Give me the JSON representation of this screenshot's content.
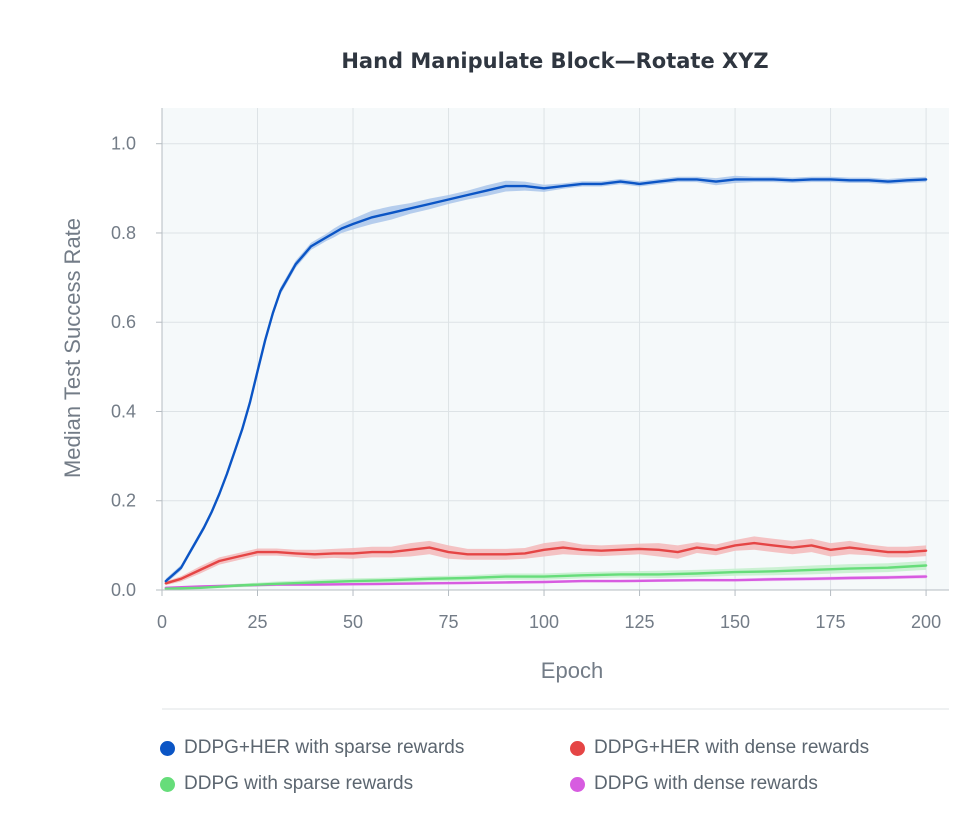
{
  "chart_data": {
    "type": "line",
    "title": "Hand Manipulate Block—Rotate XYZ",
    "xlabel": "Epoch",
    "ylabel": "Median Test Success Rate",
    "xlim": [
      0,
      206
    ],
    "ylim": [
      0,
      1.08
    ],
    "x_ticks": [
      "0",
      "25",
      "50",
      "75",
      "100",
      "125",
      "150",
      "175",
      "200"
    ],
    "y_ticks": [
      "0.0",
      "0.2",
      "0.4",
      "0.6",
      "0.8",
      "1.0"
    ],
    "grid": true,
    "legend_position": "bottom",
    "series": [
      {
        "name": "DDPG+HER with sparse rewards",
        "color": "#0b55c5",
        "band_color": "#a9c6ea",
        "x": [
          1,
          3,
          5,
          7,
          9,
          11,
          13,
          15,
          17,
          19,
          21,
          23,
          25,
          27,
          29,
          31,
          33,
          35,
          37,
          39,
          41,
          43,
          45,
          47,
          50,
          55,
          60,
          65,
          70,
          75,
          80,
          85,
          90,
          95,
          100,
          105,
          110,
          115,
          120,
          125,
          130,
          135,
          140,
          145,
          150,
          155,
          160,
          165,
          170,
          175,
          180,
          185,
          190,
          195,
          200
        ],
        "y": [
          0.02,
          0.035,
          0.05,
          0.08,
          0.11,
          0.14,
          0.175,
          0.215,
          0.26,
          0.31,
          0.36,
          0.42,
          0.49,
          0.56,
          0.62,
          0.67,
          0.7,
          0.73,
          0.75,
          0.77,
          0.78,
          0.79,
          0.8,
          0.81,
          0.82,
          0.835,
          0.845,
          0.855,
          0.865,
          0.875,
          0.885,
          0.895,
          0.905,
          0.905,
          0.9,
          0.905,
          0.91,
          0.91,
          0.915,
          0.91,
          0.915,
          0.92,
          0.92,
          0.915,
          0.92,
          0.92,
          0.92,
          0.918,
          0.92,
          0.92,
          0.918,
          0.918,
          0.915,
          0.918,
          0.92
        ],
        "band": [
          0.005,
          0.006,
          0.006,
          0.006,
          0.006,
          0.006,
          0.006,
          0.006,
          0.006,
          0.006,
          0.006,
          0.006,
          0.008,
          0.008,
          0.008,
          0.008,
          0.008,
          0.008,
          0.008,
          0.008,
          0.008,
          0.008,
          0.01,
          0.01,
          0.012,
          0.015,
          0.015,
          0.012,
          0.012,
          0.01,
          0.01,
          0.012,
          0.012,
          0.01,
          0.008,
          0.006,
          0.006,
          0.006,
          0.006,
          0.006,
          0.006,
          0.006,
          0.006,
          0.008,
          0.008,
          0.006,
          0.006,
          0.006,
          0.006,
          0.006,
          0.006,
          0.006,
          0.006,
          0.006,
          0.006
        ]
      },
      {
        "name": "DDPG+HER with dense rewards",
        "color": "#e54545",
        "band_color": "#f3b9b9",
        "x": [
          1,
          5,
          10,
          15,
          20,
          25,
          30,
          35,
          40,
          45,
          50,
          55,
          60,
          65,
          70,
          75,
          80,
          85,
          90,
          95,
          100,
          105,
          110,
          115,
          120,
          125,
          130,
          135,
          140,
          145,
          150,
          155,
          160,
          165,
          170,
          175,
          180,
          185,
          190,
          195,
          200
        ],
        "y": [
          0.015,
          0.025,
          0.045,
          0.065,
          0.075,
          0.085,
          0.085,
          0.082,
          0.08,
          0.082,
          0.082,
          0.085,
          0.085,
          0.09,
          0.095,
          0.085,
          0.08,
          0.08,
          0.08,
          0.082,
          0.09,
          0.095,
          0.09,
          0.088,
          0.09,
          0.092,
          0.09,
          0.085,
          0.095,
          0.09,
          0.1,
          0.105,
          0.1,
          0.095,
          0.1,
          0.09,
          0.095,
          0.09,
          0.085,
          0.085,
          0.088
        ],
        "band": [
          0.004,
          0.006,
          0.008,
          0.008,
          0.008,
          0.008,
          0.008,
          0.008,
          0.01,
          0.01,
          0.012,
          0.012,
          0.012,
          0.015,
          0.015,
          0.015,
          0.012,
          0.012,
          0.012,
          0.012,
          0.015,
          0.015,
          0.012,
          0.012,
          0.012,
          0.012,
          0.015,
          0.015,
          0.012,
          0.012,
          0.012,
          0.015,
          0.015,
          0.015,
          0.015,
          0.015,
          0.015,
          0.012,
          0.012,
          0.012,
          0.012
        ]
      },
      {
        "name": "DDPG with sparse rewards",
        "color": "#66dd7a",
        "band_color": "#c3f0cb",
        "x": [
          1,
          10,
          20,
          30,
          40,
          50,
          60,
          70,
          80,
          90,
          100,
          110,
          120,
          130,
          140,
          150,
          160,
          170,
          180,
          190,
          200
        ],
        "y": [
          0.003,
          0.005,
          0.01,
          0.014,
          0.017,
          0.02,
          0.022,
          0.025,
          0.027,
          0.03,
          0.03,
          0.033,
          0.035,
          0.035,
          0.037,
          0.04,
          0.042,
          0.045,
          0.048,
          0.05,
          0.055
        ],
        "band": [
          0.002,
          0.003,
          0.004,
          0.005,
          0.006,
          0.006,
          0.006,
          0.006,
          0.006,
          0.007,
          0.007,
          0.007,
          0.007,
          0.008,
          0.008,
          0.008,
          0.009,
          0.01,
          0.01,
          0.01,
          0.01
        ]
      },
      {
        "name": "DDPG with dense rewards",
        "color": "#d75ce0",
        "band_color": "#efc3f3",
        "x": [
          1,
          10,
          20,
          30,
          40,
          50,
          60,
          70,
          80,
          90,
          100,
          110,
          120,
          130,
          140,
          150,
          160,
          170,
          180,
          190,
          200
        ],
        "y": [
          0.005,
          0.008,
          0.01,
          0.012,
          0.012,
          0.013,
          0.014,
          0.015,
          0.016,
          0.017,
          0.018,
          0.02,
          0.02,
          0.021,
          0.022,
          0.022,
          0.024,
          0.025,
          0.027,
          0.028,
          0.03
        ],
        "band": [
          0.002,
          0.002,
          0.003,
          0.003,
          0.003,
          0.003,
          0.003,
          0.003,
          0.003,
          0.003,
          0.003,
          0.003,
          0.003,
          0.003,
          0.003,
          0.003,
          0.004,
          0.004,
          0.004,
          0.004,
          0.004
        ]
      }
    ]
  }
}
